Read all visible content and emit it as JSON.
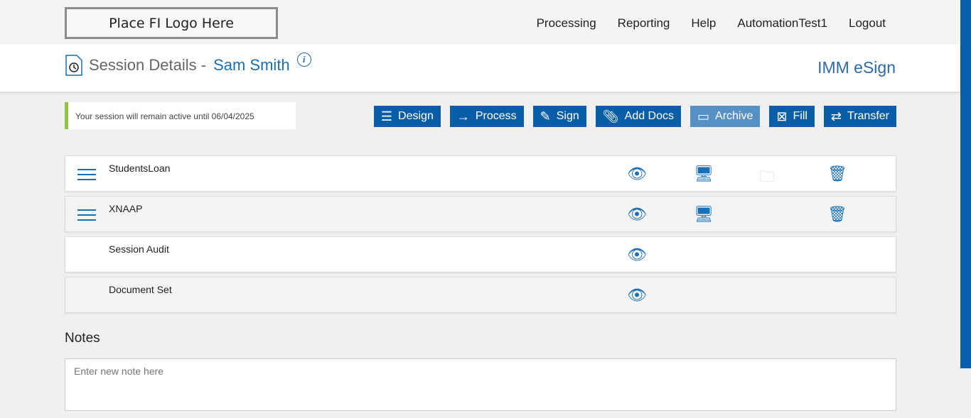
{
  "logo": "Place FI Logo Here",
  "nav": [
    "Processing",
    "Reporting",
    "Help",
    "AutomationTest1",
    "Logout"
  ],
  "header": {
    "title": "Session Details -",
    "name": "Sam Smith",
    "brand": "IMM eSign"
  },
  "session_msg": "Your session will remain active until 06/04/2025",
  "buttons": [
    {
      "label": "Design",
      "icon": "list-doc-icon"
    },
    {
      "label": "Process",
      "icon": "arrow-right-icon"
    },
    {
      "label": "Sign",
      "icon": "pen-icon"
    },
    {
      "label": "Add Docs",
      "icon": "paperclip-icon"
    },
    {
      "label": "Archive",
      "icon": "folder-icon",
      "disabled": true
    },
    {
      "label": "Fill",
      "icon": "fill-doc-icon"
    },
    {
      "label": "Transfer",
      "icon": "transfer-icon"
    }
  ],
  "rows": [
    {
      "label": "StudentsLoan"
    },
    {
      "label": "XNAAP"
    },
    {
      "label": "Session Audit"
    },
    {
      "label": "Document Set"
    }
  ],
  "notes": {
    "heading": "Notes",
    "placeholder": "Enter new note here"
  }
}
